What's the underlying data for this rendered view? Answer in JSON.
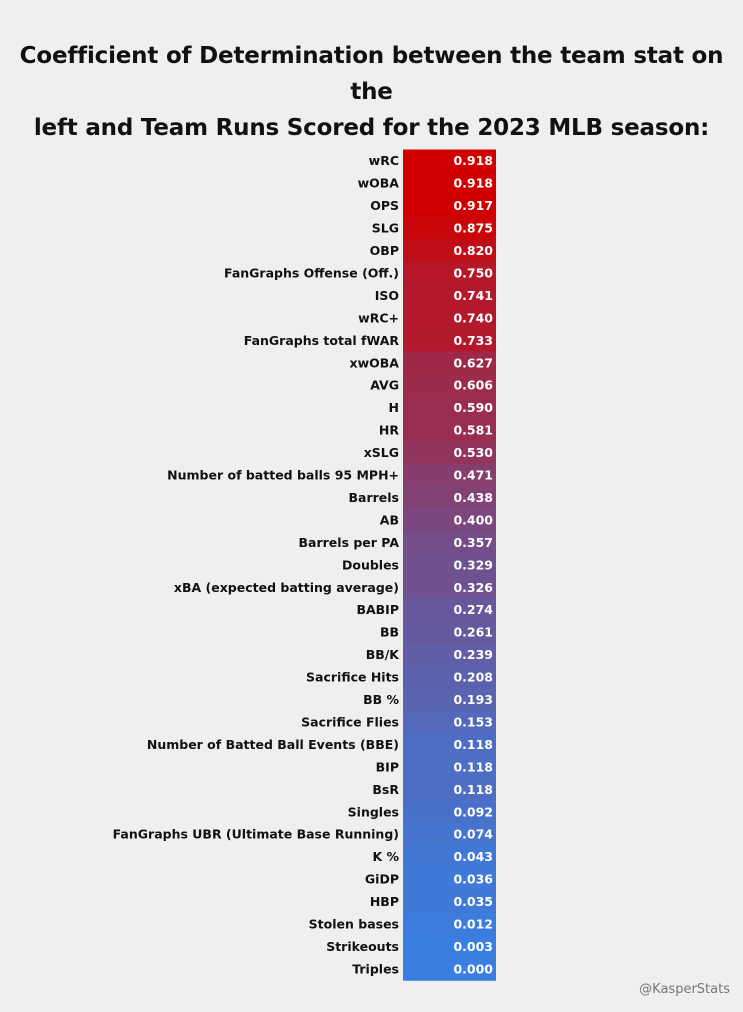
{
  "title": "Coefficient of Determination between the team stat on the left and Team Runs Scored for the 2023 MLB season:",
  "title_lines": [
    "Coefficient of Determination between the team stat on the",
    "left and Team Runs Scored for the 2023 MLB season:"
  ],
  "watermark": "@KasperStats",
  "colors": {
    "background": "#efefef",
    "high": "#d00000",
    "low": "#3a7ee0",
    "value_text": "#ffffff",
    "label_text": "#111111"
  },
  "chart_data": {
    "type": "heatmap",
    "title": "Coefficient of Determination between the team stat on the left and Team Runs Scored for the 2023 MLB season:",
    "color_scale": {
      "min": 0.0,
      "max": 0.918,
      "low_color": "#3a7ee0",
      "high_color": "#d00000"
    },
    "categories": [
      "wRC",
      "wOBA",
      "OPS",
      "SLG",
      "OBP",
      "FanGraphs Offense (Off.)",
      "ISO",
      "wRC+",
      "FanGraphs total fWAR",
      "xwOBA",
      "AVG",
      "H",
      "HR",
      "xSLG",
      "Number of batted balls 95 MPH+",
      "Barrels",
      "AB",
      "Barrels per PA",
      "Doubles",
      "xBA (expected batting average)",
      "BABIP",
      "BB",
      "BB/K",
      "Sacrifice Hits",
      "BB %",
      "Sacrifice Flies",
      "Number of Batted Ball Events (BBE)",
      "BIP",
      "BsR",
      "Singles",
      "FanGraphs UBR (Ultimate Base Running)",
      "K %",
      "GiDP",
      "HBP",
      "Stolen bases",
      "Strikeouts",
      "Triples"
    ],
    "values": [
      0.918,
      0.918,
      0.917,
      0.875,
      0.82,
      0.75,
      0.741,
      0.74,
      0.733,
      0.627,
      0.606,
      0.59,
      0.581,
      0.53,
      0.471,
      0.438,
      0.4,
      0.357,
      0.329,
      0.326,
      0.274,
      0.261,
      0.239,
      0.208,
      0.193,
      0.153,
      0.118,
      0.118,
      0.118,
      0.092,
      0.074,
      0.043,
      0.036,
      0.035,
      0.012,
      0.003,
      0.0
    ],
    "value_labels": [
      "0.918",
      "0.918",
      "0.917",
      "0.875",
      "0.820",
      "0.750",
      "0.741",
      "0.740",
      "0.733",
      "0.627",
      "0.606",
      "0.590",
      "0.581",
      "0.530",
      "0.471",
      "0.438",
      "0.400",
      "0.357",
      "0.329",
      "0.326",
      "0.274",
      "0.261",
      "0.239",
      "0.208",
      "0.193",
      "0.153",
      "0.118",
      "0.118",
      "0.118",
      "0.092",
      "0.074",
      "0.043",
      "0.036",
      "0.035",
      "0.012",
      "0.003",
      "0.000"
    ]
  }
}
